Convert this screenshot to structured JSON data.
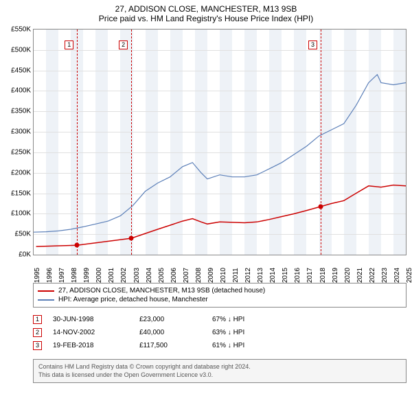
{
  "title": "27, ADDISON CLOSE, MANCHESTER, M13 9SB",
  "subtitle": "Price paid vs. HM Land Registry's House Price Index (HPI)",
  "chart": {
    "type": "line",
    "background_color": "#ffffff",
    "grid_color": "#e0e0e0",
    "band_color": "#eef2f7",
    "border_color": "#888888",
    "y": {
      "min": 0,
      "max": 550,
      "step": 50,
      "prefix": "£",
      "suffix": "K"
    },
    "x": {
      "min": 1995,
      "max": 2025,
      "step": 1
    },
    "series": [
      {
        "name": "hpi",
        "label": "HPI: Average price, detached house, Manchester",
        "color": "#5b7fb8",
        "width": 1.2,
        "data": [
          [
            1995,
            55
          ],
          [
            1996,
            56
          ],
          [
            1997,
            58
          ],
          [
            1998,
            62
          ],
          [
            1999,
            68
          ],
          [
            2000,
            75
          ],
          [
            2001,
            82
          ],
          [
            2002,
            95
          ],
          [
            2003,
            120
          ],
          [
            2004,
            155
          ],
          [
            2005,
            175
          ],
          [
            2006,
            190
          ],
          [
            2007,
            215
          ],
          [
            2007.8,
            225
          ],
          [
            2008.5,
            200
          ],
          [
            2009,
            185
          ],
          [
            2010,
            195
          ],
          [
            2011,
            190
          ],
          [
            2012,
            190
          ],
          [
            2013,
            195
          ],
          [
            2014,
            210
          ],
          [
            2015,
            225
          ],
          [
            2016,
            245
          ],
          [
            2017,
            265
          ],
          [
            2018,
            290
          ],
          [
            2019,
            305
          ],
          [
            2020,
            320
          ],
          [
            2021,
            365
          ],
          [
            2022,
            420
          ],
          [
            2022.7,
            440
          ],
          [
            2023,
            420
          ],
          [
            2024,
            415
          ],
          [
            2025,
            420
          ]
        ]
      },
      {
        "name": "price_paid",
        "label": "27, ADDISON CLOSE, MANCHESTER, M13 9SB (detached house)",
        "color": "#cc0000",
        "width": 1.5,
        "data": [
          [
            1995.2,
            20
          ],
          [
            1998.5,
            23
          ],
          [
            2002.87,
            40
          ],
          [
            2005,
            62
          ],
          [
            2006,
            72
          ],
          [
            2007,
            82
          ],
          [
            2007.8,
            88
          ],
          [
            2008.5,
            80
          ],
          [
            2009,
            75
          ],
          [
            2010,
            80
          ],
          [
            2012,
            78
          ],
          [
            2013,
            80
          ],
          [
            2014,
            86
          ],
          [
            2015,
            93
          ],
          [
            2016,
            100
          ],
          [
            2017,
            108
          ],
          [
            2018.14,
            117.5
          ],
          [
            2019,
            125
          ],
          [
            2020,
            132
          ],
          [
            2021,
            150
          ],
          [
            2022,
            168
          ],
          [
            2023,
            165
          ],
          [
            2024,
            170
          ],
          [
            2025,
            168
          ]
        ]
      }
    ],
    "markers": [
      {
        "n": "1",
        "x": 1998.5,
        "y": 23
      },
      {
        "n": "2",
        "x": 2002.87,
        "y": 40
      },
      {
        "n": "3",
        "x": 2018.14,
        "y": 117.5
      }
    ],
    "marker_color": "#cc0000"
  },
  "legend": [
    {
      "color": "#cc0000",
      "text": "27, ADDISON CLOSE, MANCHESTER, M13 9SB (detached house)"
    },
    {
      "color": "#5b7fb8",
      "text": "HPI: Average price, detached house, Manchester"
    }
  ],
  "sales": [
    {
      "n": "1",
      "date": "30-JUN-1998",
      "price": "£23,000",
      "delta": "67% ↓ HPI"
    },
    {
      "n": "2",
      "date": "14-NOV-2002",
      "price": "£40,000",
      "delta": "63% ↓ HPI"
    },
    {
      "n": "3",
      "date": "19-FEB-2018",
      "price": "£117,500",
      "delta": "61% ↓ HPI"
    }
  ],
  "attribution": {
    "line1": "Contains HM Land Registry data © Crown copyright and database right 2024.",
    "line2": "This data is licensed under the Open Government Licence v3.0."
  }
}
